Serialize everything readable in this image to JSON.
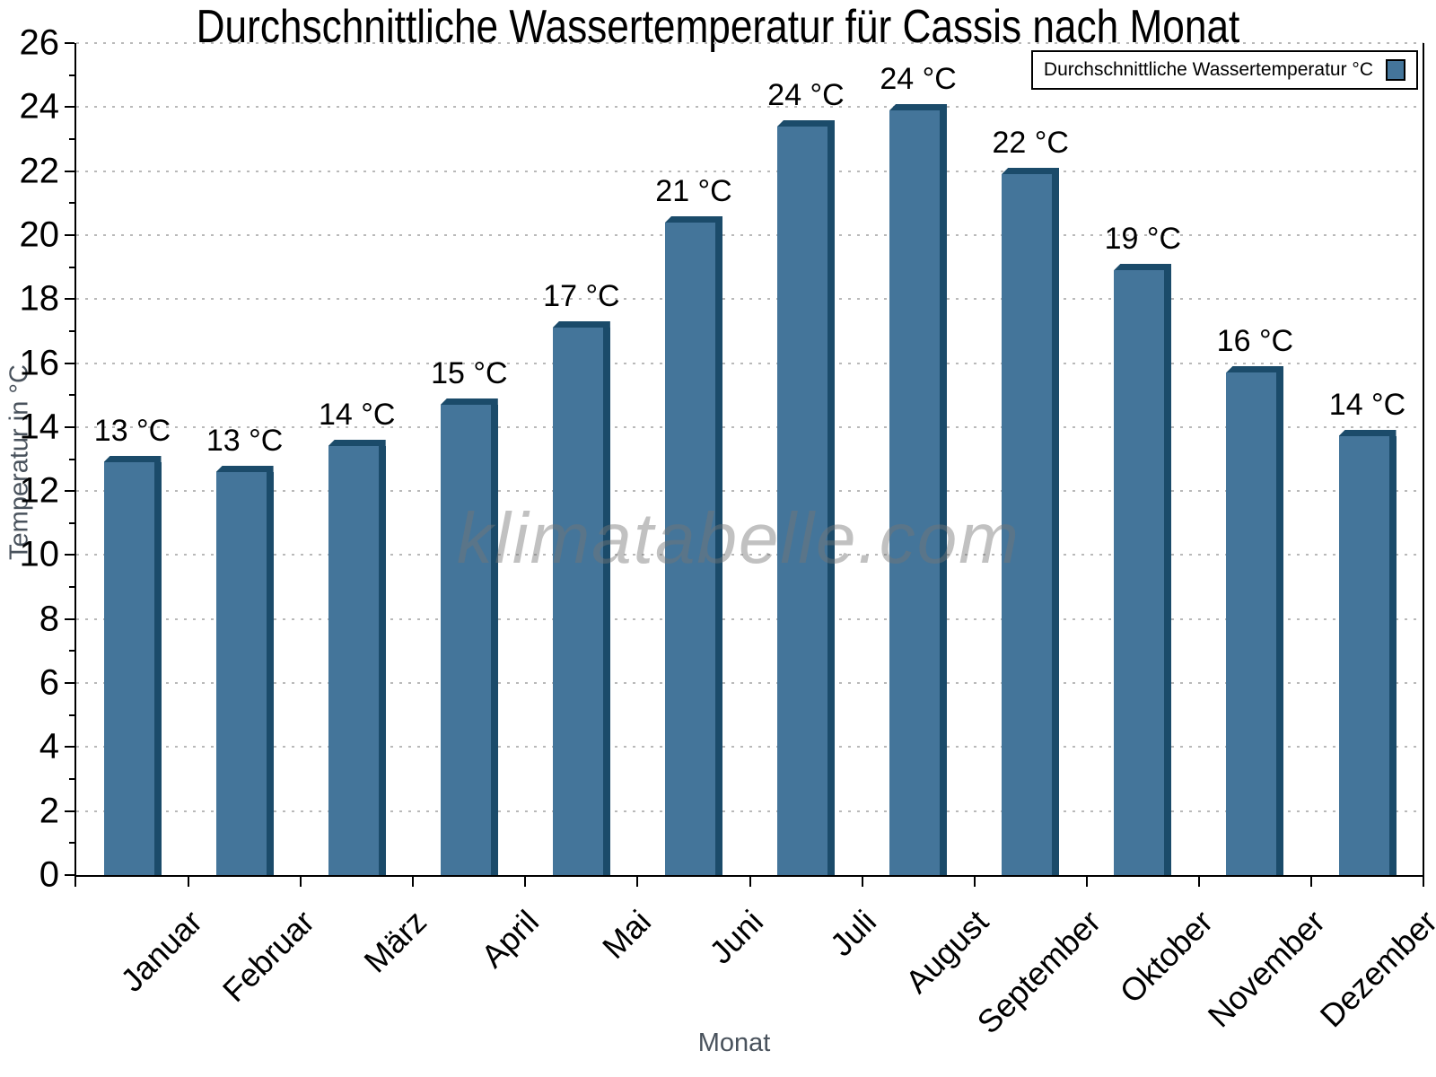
{
  "watermark": "klimatabelle.com",
  "colors": {
    "bar": "#44759A",
    "bar_shade": "#1B4B6A",
    "grid": "#B9B9B9",
    "axis_title_text": "#49525C",
    "tick_text": "#000000",
    "background": "#FFFFFF"
  },
  "chart_data": {
    "type": "bar",
    "title": "Durchschnittliche Wassertemperatur für Cassis nach Monat",
    "xlabel": "Monat",
    "ylabel": "Temperatur in °C",
    "ylim": [
      0,
      26
    ],
    "ytick_step": 2,
    "yticks": [
      0,
      2,
      4,
      6,
      8,
      10,
      12,
      14,
      16,
      18,
      20,
      22,
      24,
      26
    ],
    "grid": "horizontal dotted lines at every major tick, behind bars",
    "legend": {
      "label": "Durchschnittliche Wassertemperatur °C",
      "position": "top-right",
      "swatch_side": "right"
    },
    "categories": [
      "Januar",
      "Februar",
      "März",
      "April",
      "Mai",
      "Juni",
      "Juli",
      "August",
      "September",
      "Oktober",
      "November",
      "Dezember"
    ],
    "series": [
      {
        "name": "Durchschnittliche Wassertemperatur °C",
        "values": [
          13.1,
          12.8,
          13.6,
          14.9,
          17.3,
          20.6,
          23.6,
          24.1,
          22.1,
          19.1,
          15.9,
          13.9
        ],
        "bar_labels": [
          "13 °C",
          "13 °C",
          "14 °C",
          "15 °C",
          "17 °C",
          "21 °C",
          "24 °C",
          "24 °C",
          "22 °C",
          "19 °C",
          "16 °C",
          "14 °C"
        ]
      }
    ],
    "bar_style": "3D effect: darker top cap and darker right side strip"
  }
}
